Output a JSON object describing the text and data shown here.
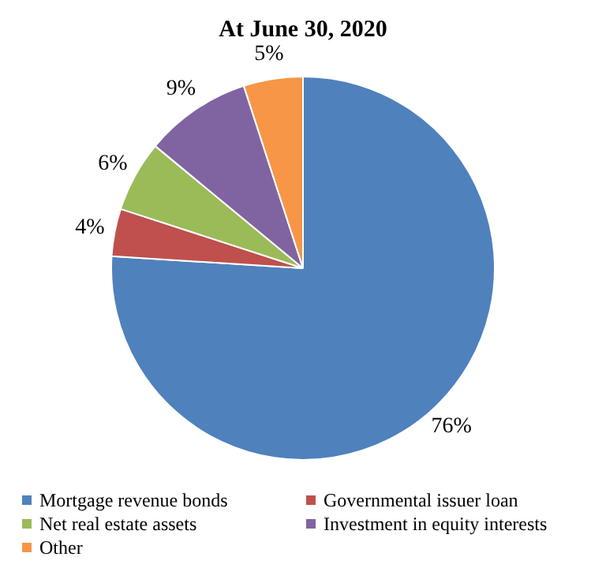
{
  "chart_data": {
    "type": "pie",
    "title": "At June 30, 2020",
    "categories": [
      "Mortgage revenue bonds",
      "Governmental issuer loan",
      "Net real estate assets",
      "Investment in equity interests",
      "Other"
    ],
    "values": [
      76,
      4,
      6,
      9,
      5
    ],
    "colors": [
      "#4f81bd",
      "#c0504d",
      "#9bbb59",
      "#8064a2",
      "#f79646"
    ],
    "value_labels": [
      "76%",
      "4%",
      "6%",
      "9%",
      "5%"
    ],
    "legend": "bottom"
  }
}
